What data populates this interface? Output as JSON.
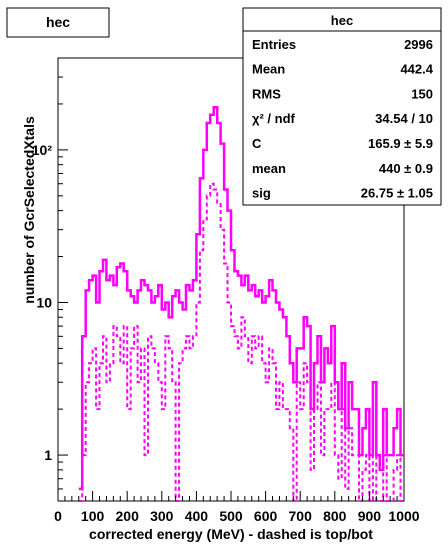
{
  "title": "hec",
  "stats": {
    "title": "hec",
    "rows": [
      {
        "label": "Entries",
        "value": "2996"
      },
      {
        "label": "Mean",
        "value": "442.4"
      },
      {
        "label": "RMS",
        "value": "150"
      },
      {
        "label": "χ² / ndf",
        "value": "34.54 / 10"
      },
      {
        "label": "C",
        "value": "165.9 ± 5.9"
      },
      {
        "label": "mean",
        "value": "440 ± 0.9"
      },
      {
        "label": "sig",
        "value": "26.75 ± 1.05"
      }
    ]
  },
  "colors": {
    "series": "#ff00ff",
    "axis": "#000000"
  },
  "chart_data": {
    "type": "line",
    "title": "hec",
    "xlabel": "corrected energy (MeV) - dashed is top/bot",
    "ylabel": "number of GcrSelectedXtals",
    "xlim": [
      0,
      1000
    ],
    "ylim": [
      0.5,
      400
    ],
    "yscale": "log",
    "grid": false,
    "legend": "top-right",
    "x_ticks": [
      0,
      100,
      200,
      300,
      400,
      500,
      600,
      700,
      800,
      900,
      1000
    ],
    "y_ticks": [
      {
        "value": 1,
        "label": "1"
      },
      {
        "value": 10,
        "label": "10"
      },
      {
        "value": 100,
        "label": "10²"
      }
    ],
    "bin_width": 10,
    "series": [
      {
        "style": "solid",
        "x": [
          60,
          70,
          80,
          90,
          100,
          110,
          120,
          130,
          140,
          150,
          160,
          170,
          180,
          190,
          200,
          210,
          220,
          230,
          240,
          250,
          260,
          270,
          280,
          290,
          300,
          310,
          320,
          330,
          340,
          350,
          360,
          370,
          380,
          390,
          400,
          410,
          420,
          430,
          440,
          450,
          460,
          470,
          480,
          490,
          500,
          510,
          520,
          530,
          540,
          550,
          560,
          570,
          580,
          590,
          600,
          610,
          620,
          630,
          640,
          650,
          660,
          670,
          680,
          690,
          700,
          710,
          720,
          730,
          740,
          750,
          760,
          770,
          780,
          790,
          800,
          810,
          820,
          830,
          840,
          850,
          860,
          870,
          880,
          890,
          900,
          910,
          920,
          930,
          940,
          950,
          960,
          970,
          980,
          990
        ],
        "values": [
          0.6,
          6,
          12,
          14,
          15,
          10,
          16,
          19,
          14,
          15,
          13,
          17,
          18,
          16,
          12,
          11,
          10,
          12,
          14,
          13,
          12,
          10,
          11,
          13,
          9,
          10,
          8,
          11,
          12,
          10,
          9,
          13,
          12,
          14,
          28,
          65,
          100,
          150,
          170,
          190,
          150,
          110,
          55,
          40,
          22,
          16,
          15,
          13,
          15,
          12,
          13,
          11,
          12,
          10,
          11,
          14,
          12,
          10,
          9,
          8,
          6,
          4,
          3,
          5,
          5,
          8,
          7,
          2,
          4,
          6,
          3,
          5,
          4,
          7,
          3,
          2,
          4,
          1.5,
          3,
          2,
          2,
          1,
          1.5,
          2,
          1,
          3,
          1,
          0.8,
          2,
          1,
          1,
          1.5,
          2,
          1
        ]
      },
      {
        "style": "dashed",
        "x": [
          60,
          70,
          80,
          90,
          100,
          110,
          120,
          130,
          140,
          150,
          160,
          170,
          180,
          190,
          200,
          210,
          220,
          230,
          240,
          250,
          260,
          270,
          280,
          290,
          300,
          310,
          320,
          330,
          340,
          350,
          360,
          370,
          380,
          390,
          400,
          410,
          420,
          430,
          440,
          450,
          460,
          470,
          480,
          490,
          500,
          510,
          520,
          530,
          540,
          550,
          560,
          570,
          580,
          590,
          600,
          610,
          620,
          630,
          640,
          650,
          660,
          670,
          680,
          690,
          700,
          710,
          720,
          730,
          740,
          750,
          760,
          770,
          780,
          790,
          800,
          810,
          820,
          830,
          840,
          850,
          860,
          870,
          880,
          890,
          900,
          910,
          920,
          930,
          940,
          950,
          960,
          970,
          980,
          990
        ],
        "values": [
          0.5,
          1,
          3,
          4,
          5,
          2,
          4,
          6,
          3,
          4,
          7,
          6,
          4,
          7,
          2,
          5,
          7,
          3,
          5,
          1,
          6,
          5,
          4,
          3,
          2,
          6,
          5,
          3,
          0.5,
          4,
          5,
          6,
          5,
          6,
          10,
          22,
          35,
          50,
          60,
          55,
          45,
          30,
          18,
          10,
          7,
          6,
          5,
          8,
          6,
          4,
          6,
          5,
          6,
          4,
          3,
          5,
          4,
          2,
          3,
          2,
          2,
          1.5,
          0.5,
          3,
          2,
          4,
          3,
          0.8,
          2,
          3,
          1,
          2,
          2,
          3,
          1,
          0.7,
          2,
          0.6,
          1.5,
          1,
          1,
          0.5,
          0.8,
          1,
          0.5,
          1,
          0.5,
          0.5,
          1,
          0.5,
          0.5,
          0.8,
          1,
          0.5
        ]
      }
    ]
  }
}
